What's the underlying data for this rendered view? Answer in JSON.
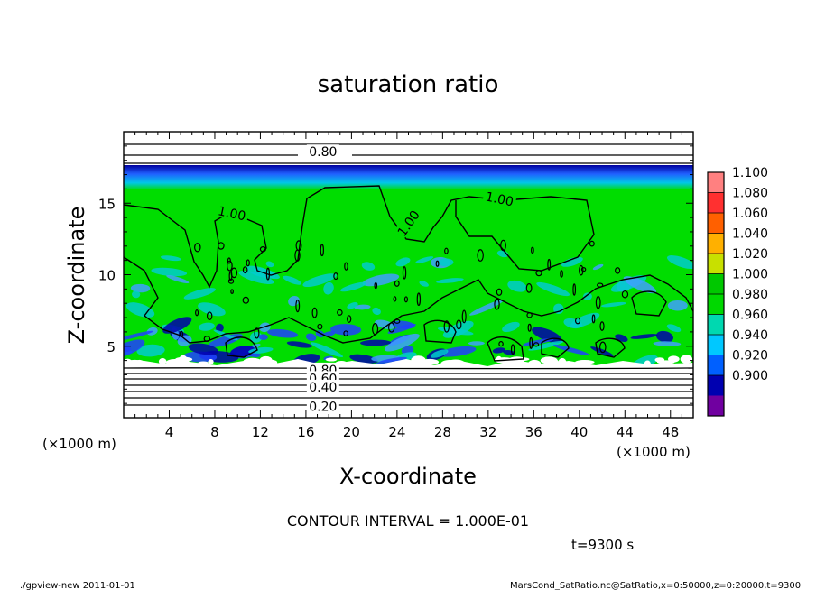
{
  "title": "saturation ratio",
  "footer": {
    "left": "./gpview-new   2011-01-01",
    "right": "MarsCond_SatRatio.nc@SatRatio,x=0:50000,z=0:20000,t=9300"
  },
  "contour_interval_text": "CONTOUR INTERVAL = 1.000E-01",
  "time_text": "t=9300 s",
  "colors": {
    "outside": "#ffffff",
    "green": "#00dd00",
    "cyan": "#00cccc",
    "blue": "#2040ff",
    "navy": "#0000aa"
  },
  "chart_data": {
    "type": "heatmap",
    "title": "saturation ratio",
    "xlabel": "X-coordinate",
    "ylabel": "Z-coordinate",
    "x_unit_label": "(×1000 m)",
    "y_unit_label": "(×1000 m)",
    "xlim": [
      0,
      50
    ],
    "ylim": [
      0,
      20
    ],
    "x_ticks": [
      4,
      8,
      12,
      16,
      20,
      24,
      28,
      32,
      36,
      40,
      44,
      48
    ],
    "y_ticks": [
      5,
      10,
      15
    ],
    "contour_labels": [
      {
        "text": "0.80",
        "x": 17.5,
        "z": 18.6
      },
      {
        "text": "1.00",
        "x": 9.5,
        "z": 14.3
      },
      {
        "text": "1.00",
        "x": 25.0,
        "z": 13.6
      },
      {
        "text": "1.00",
        "x": 33.0,
        "z": 15.3
      },
      {
        "text": "0.80",
        "x": 17.5,
        "z": 3.35
      },
      {
        "text": "0.60",
        "x": 17.5,
        "z": 2.75
      },
      {
        "text": "0.40",
        "x": 17.5,
        "z": 2.15
      },
      {
        "text": "0.20",
        "x": 17.5,
        "z": 0.8
      }
    ],
    "colorbar": {
      "levels": [
        "1.100",
        "1.080",
        "1.060",
        "1.040",
        "1.020",
        "1.000",
        "0.980",
        "0.960",
        "0.940",
        "0.920",
        "0.900"
      ],
      "colors": [
        "#ff8080",
        "#ff3030",
        "#ff6000",
        "#ffb000",
        "#c8e000",
        "#00c800",
        "#00d800",
        "#00d8b0",
        "#00c8ff",
        "#0060ff",
        "#0000b0",
        "#7000a0"
      ]
    }
  }
}
